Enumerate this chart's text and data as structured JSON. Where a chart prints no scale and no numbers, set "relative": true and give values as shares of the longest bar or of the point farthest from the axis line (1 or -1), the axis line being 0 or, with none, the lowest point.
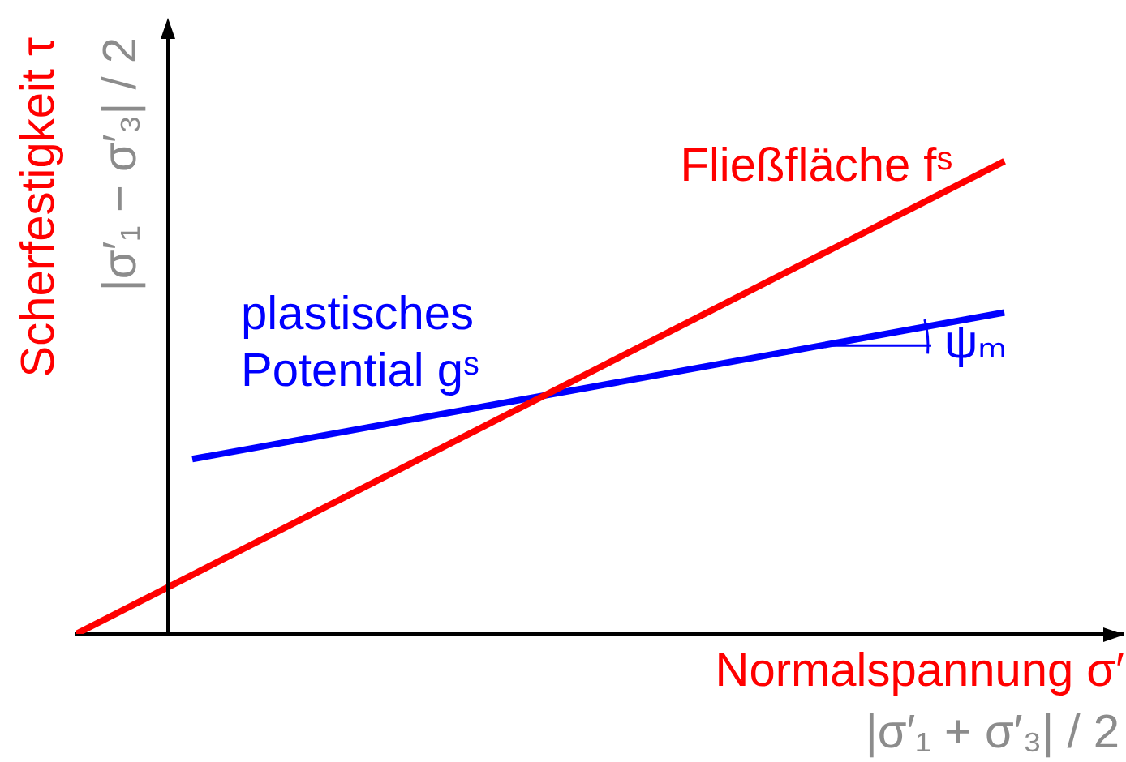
{
  "chart_data": {
    "type": "line",
    "xlabel": "Normalspannung σ′",
    "ylabel": "Scherfestigkeit τ",
    "annotations": [
      "|σ′₁ − σ′₃| / 2",
      "|σ′₁ + σ′₃| / 2",
      "ψₘ"
    ],
    "categories": [
      null,
      null,
      null,
      null,
      null,
      null,
      null,
      null,
      null
    ],
    "relative": true,
    "marker": "none",
    "series": [
      {
        "name": "Fließfläche fˢ",
        "color": "#ff0000",
        "values": [
          0,
          null,
          null,
          null,
          null,
          null,
          null,
          null,
          1
        ]
      },
      {
        "name": "plastisches Potential gˢ",
        "color": "#0000ff",
        "values": [
          null,
          0.37,
          null,
          null,
          null,
          null,
          null,
          null,
          0.68
        ]
      }
    ]
  }
}
